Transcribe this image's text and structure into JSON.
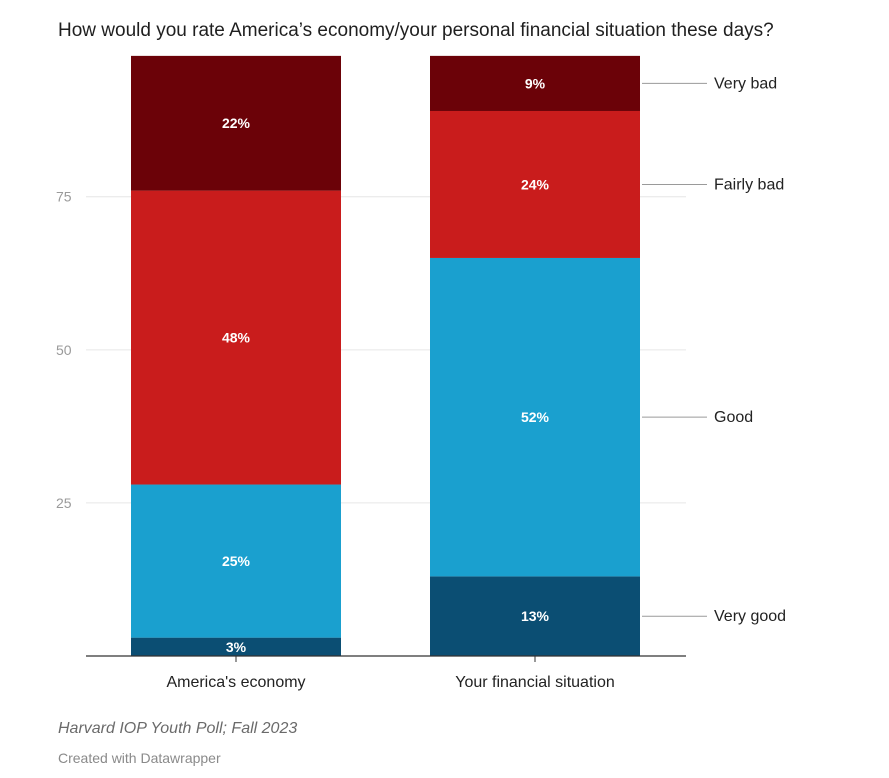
{
  "chart_data": {
    "type": "bar",
    "stacked": true,
    "title": "How would you rate America’s economy/your personal financial situation these days?",
    "xlabel": "",
    "ylabel": "",
    "ylim": [
      0,
      97
    ],
    "yticks": [
      25,
      50,
      75
    ],
    "grid": true,
    "legend_placement": "right",
    "categories": [
      "America's economy",
      "Your financial situation"
    ],
    "series": [
      {
        "name": "Very good",
        "values": [
          3,
          13
        ],
        "labels": [
          "3%",
          "13%"
        ],
        "color": "#0b4e73"
      },
      {
        "name": "Good",
        "values": [
          25,
          52
        ],
        "labels": [
          "25%",
          "52%"
        ],
        "color": "#1aa0cf"
      },
      {
        "name": "Fairly bad",
        "values": [
          48,
          24
        ],
        "labels": [
          "48%",
          "24%"
        ],
        "color": "#c91c1c"
      },
      {
        "name": "Very bad",
        "values": [
          22,
          9
        ],
        "labels": [
          "22%",
          "9%"
        ],
        "color": "#6b0208"
      }
    ]
  },
  "source": "Harvard IOP Youth Poll; Fall 2023",
  "credit": "Created with Datawrapper"
}
